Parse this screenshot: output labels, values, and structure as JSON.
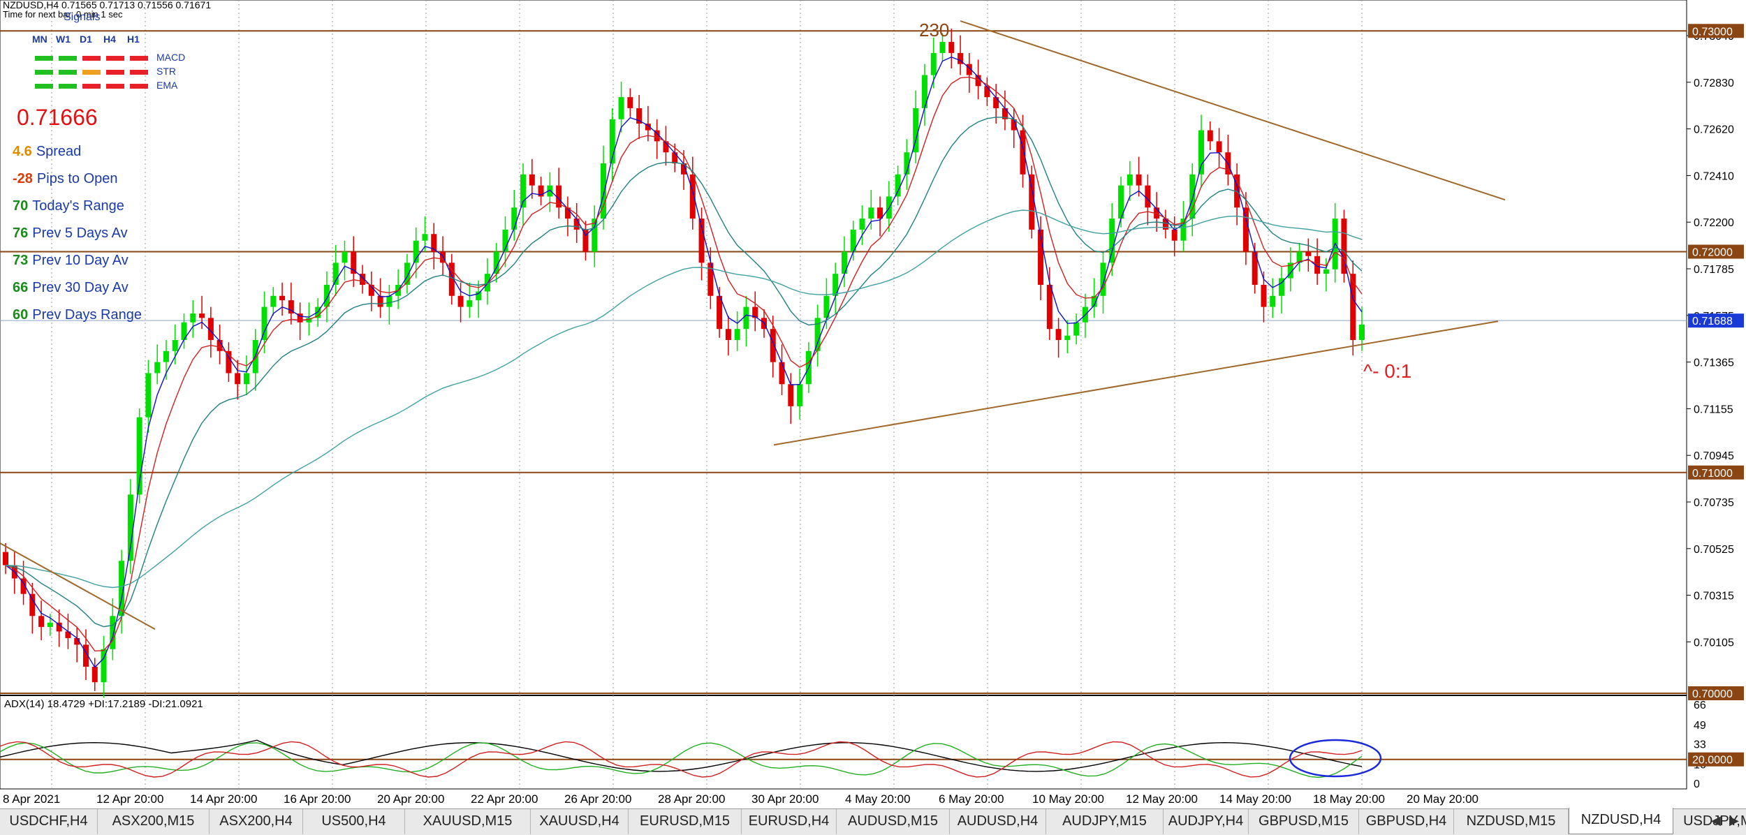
{
  "header": {
    "symbol_line": "NZDUSD,H4  0.71565 0.71713 0.71556 0.71671",
    "time_line": "Time for next bar: 0 min 1 sec"
  },
  "signals": {
    "title": "Signals",
    "timeframes": [
      "MN",
      "W1",
      "D1",
      "H4",
      "H1"
    ],
    "rows": [
      {
        "name": "MACD",
        "colors": [
          "#22c022",
          "#22c022",
          "#e8202a",
          "#e8202a",
          "#e8202a"
        ]
      },
      {
        "name": "STR",
        "colors": [
          "#22c022",
          "#22c022",
          "#f0a020",
          "#e8202a",
          "#e8202a"
        ]
      },
      {
        "name": "EMA",
        "colors": [
          "#22c022",
          "#22c022",
          "#e8202a",
          "#e8202a",
          "#e8202a"
        ]
      }
    ]
  },
  "stats": {
    "price": "0.71666",
    "items": [
      {
        "value": "4.6",
        "label": "Spread",
        "color": "#e08a00"
      },
      {
        "value": "-28",
        "label": "Pips to Open",
        "color": "#e03a00"
      },
      {
        "value": "70",
        "label": "Today's Range",
        "color": "#1a8a1a"
      },
      {
        "value": "76",
        "label": "Prev 5 Days Av",
        "color": "#1a8a1a"
      },
      {
        "value": "73",
        "label": "Prev 10 Day Av",
        "color": "#1a8a1a"
      },
      {
        "value": "66",
        "label": "Prev 30 Day Av",
        "color": "#1a8a1a"
      },
      {
        "value": "60",
        "label": "Prev Days Range",
        "color": "#1a8a1a"
      }
    ]
  },
  "annotations": {
    "top_count": "230",
    "ratio": "^- 0:1"
  },
  "price_axis": {
    "ticks": [
      "0.73040",
      "0.72830",
      "0.72620",
      "0.72410",
      "0.72200",
      "0.71785",
      "0.71575",
      "0.71365",
      "0.71155",
      "0.70945",
      "0.70735",
      "0.70525",
      "0.70315",
      "0.70105"
    ],
    "level_boxes": [
      {
        "label": "0.73000",
        "price": 0.73,
        "kind": "level"
      },
      {
        "label": "0.72000",
        "price": 0.72,
        "kind": "level"
      },
      {
        "label": "0.71688",
        "price": 0.71688,
        "kind": "current"
      },
      {
        "label": "0.71000",
        "price": 0.71,
        "kind": "level"
      },
      {
        "label": "0.70000",
        "price": 0.7,
        "kind": "level"
      }
    ]
  },
  "time_axis": {
    "labels": [
      "8 Apr 2021",
      "12 Apr 20:00",
      "14 Apr 20:00",
      "16 Apr 20:00",
      "20 Apr 20:00",
      "22 Apr 20:00",
      "26 Apr 20:00",
      "28 Apr 20:00",
      "30 Apr 20:00",
      "4 May 20:00",
      "6 May 20:00",
      "10 May 20:00",
      "12 May 20:00",
      "14 May 20:00",
      "18 May 20:00",
      "20 May 20:00"
    ]
  },
  "adx": {
    "title": "ADX(14) 18.4729 +DI:17.2189 -DI:21.0921",
    "scale_ticks": [
      "66",
      "49",
      "33",
      "16",
      "0"
    ],
    "level_label": "20.0000",
    "level": 20
  },
  "tabs": {
    "items": [
      "USDCHF,H4",
      "ASX200,M15",
      "ASX200,H4",
      "US500,H4",
      "XAUUSD,M15",
      "XAUUSD,H4",
      "EURUSD,M15",
      "EURUSD,H4",
      "AUDUSD,M15",
      "AUDUSD,H4",
      "AUDJPY,M15",
      "AUDJPY,H4",
      "GBPUSD,M15",
      "GBPUSD,H4",
      "NZDUSD,M15",
      "NZDUSD,H4",
      "USDJPY,M15",
      "US"
    ],
    "active": "NZDUSD,H4",
    "prev_arrow": "◀",
    "next_arrow": "▶"
  },
  "chart_data": {
    "type": "candlestick",
    "symbol": "NZDUSD",
    "timeframe": "H4",
    "ylim": [
      0.7,
      0.7314
    ],
    "series": [
      {
        "name": "close",
        "values": [
          0.7058,
          0.7052,
          0.7045,
          0.7035,
          0.703,
          0.7032,
          0.7028,
          0.7025,
          0.7022,
          0.7012,
          0.7005,
          0.702,
          0.7035,
          0.706,
          0.709,
          0.7125,
          0.7145,
          0.715,
          0.7155,
          0.716,
          0.7168,
          0.7172,
          0.717,
          0.716,
          0.7155,
          0.7145,
          0.714,
          0.7145,
          0.716,
          0.7175,
          0.718,
          0.7178,
          0.7172,
          0.7168,
          0.717,
          0.7175,
          0.7185,
          0.7195,
          0.72,
          0.719,
          0.7185,
          0.718,
          0.7175,
          0.718,
          0.7185,
          0.7195,
          0.7205,
          0.7208,
          0.72,
          0.7195,
          0.718,
          0.7175,
          0.7178,
          0.7182,
          0.719,
          0.72,
          0.721,
          0.722,
          0.7235,
          0.723,
          0.7225,
          0.723,
          0.722,
          0.7215,
          0.721,
          0.72,
          0.7215,
          0.724,
          0.726,
          0.727,
          0.7265,
          0.7258,
          0.7255,
          0.725,
          0.7245,
          0.724,
          0.7235,
          0.7215,
          0.7195,
          0.718,
          0.7165,
          0.716,
          0.7165,
          0.7175,
          0.717,
          0.7165,
          0.715,
          0.714,
          0.713,
          0.714,
          0.7155,
          0.717,
          0.718,
          0.719,
          0.72,
          0.721,
          0.7215,
          0.722,
          0.7215,
          0.7225,
          0.7235,
          0.7245,
          0.7265,
          0.728,
          0.729,
          0.7295,
          0.729,
          0.7285,
          0.728,
          0.7275,
          0.727,
          0.7265,
          0.726,
          0.7255,
          0.7235,
          0.721,
          0.7185,
          0.7165,
          0.716,
          0.7162,
          0.7168,
          0.7175,
          0.718,
          0.7195,
          0.7215,
          0.723,
          0.7235,
          0.723,
          0.722,
          0.7215,
          0.721,
          0.7205,
          0.7215,
          0.7235,
          0.7255,
          0.725,
          0.7245,
          0.7235,
          0.722,
          0.72,
          0.7185,
          0.7175,
          0.718,
          0.7188,
          0.7195,
          0.72,
          0.7198,
          0.719,
          0.7192,
          0.7215,
          0.719,
          0.716,
          0.7167
        ]
      }
    ],
    "moving_averages": [
      {
        "name": "ema_fast",
        "color": "#1010c8"
      },
      {
        "name": "ema_mid",
        "color": "#d02020"
      },
      {
        "name": "ema_slow",
        "color": "#208080"
      },
      {
        "name": "ema_long",
        "color": "#40a0a0"
      }
    ],
    "horizontal_levels": [
      0.73,
      0.72,
      0.71,
      0.7
    ],
    "current_price": 0.71688,
    "colors": {
      "bull": "#00e000",
      "bear": "#e00000",
      "level": "#8b4513",
      "trend": "#a0682a"
    }
  }
}
